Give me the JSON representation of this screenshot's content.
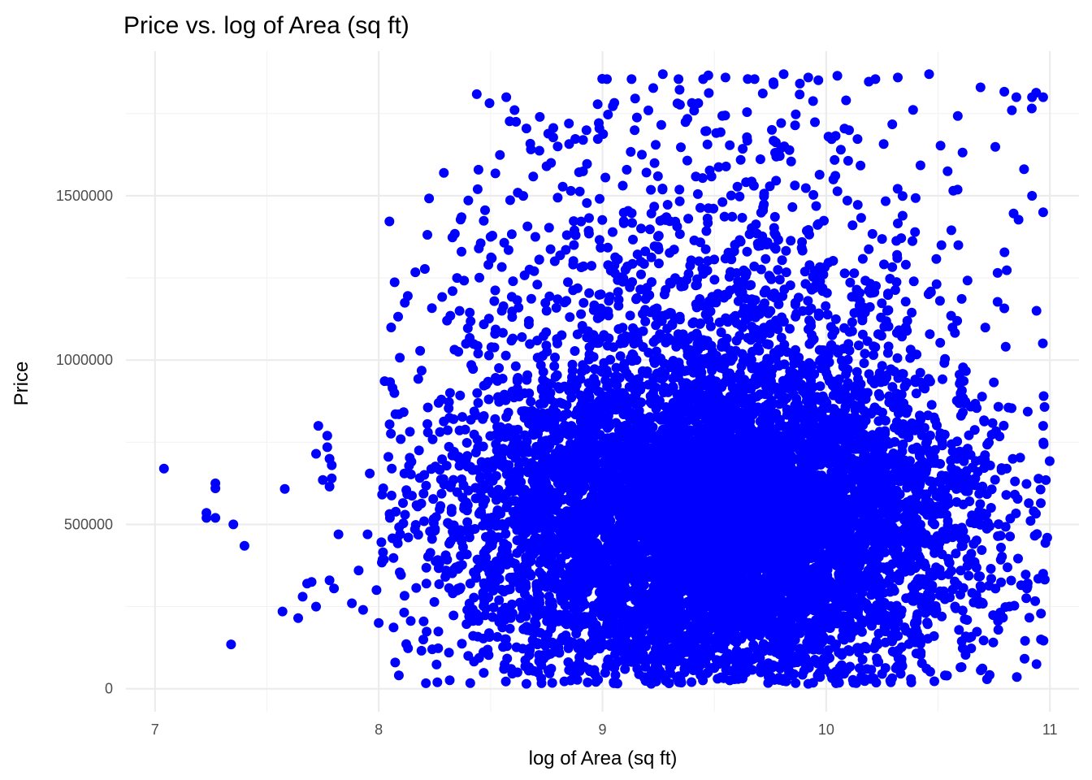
{
  "chart_data": {
    "type": "scatter",
    "title": "Price vs. log of Area (sq ft)",
    "xlabel": "log of Area (sq ft)",
    "ylabel": "Price",
    "xlim": [
      6.87,
      11.13
    ],
    "ylim": [
      -70000,
      1940000
    ],
    "x_ticks": [
      7,
      8,
      9,
      10,
      11
    ],
    "x_tick_labels": [
      "7",
      "8",
      "9",
      "10",
      "11"
    ],
    "y_ticks": [
      0,
      500000,
      1000000,
      1500000
    ],
    "y_tick_labels": [
      "0",
      "500000",
      "1000000",
      "1500000"
    ],
    "point_color": "#0000FF",
    "grid": true,
    "legend": "none",
    "series": [
      {
        "points": [
          [
            7.04,
            670000
          ],
          [
            7.23,
            535000
          ],
          [
            7.23,
            520000
          ],
          [
            7.27,
            625000
          ],
          [
            7.27,
            610000
          ],
          [
            7.27,
            520000
          ],
          [
            7.34,
            135000
          ],
          [
            7.35,
            500000
          ],
          [
            7.4,
            435000
          ],
          [
            7.58,
            608000
          ],
          [
            7.57,
            235000
          ],
          [
            7.64,
            215000
          ],
          [
            7.66,
            280000
          ],
          [
            7.68,
            320000
          ],
          [
            7.7,
            325000
          ],
          [
            7.72,
            250000
          ],
          [
            7.73,
            800000
          ],
          [
            7.72,
            715000
          ],
          [
            7.75,
            635000
          ],
          [
            7.77,
            770000
          ],
          [
            7.77,
            735000
          ],
          [
            7.78,
            700000
          ],
          [
            7.78,
            615000
          ],
          [
            7.79,
            680000
          ],
          [
            7.79,
            640000
          ],
          [
            7.78,
            330000
          ],
          [
            7.8,
            305000
          ],
          [
            7.82,
            470000
          ],
          [
            7.88,
            260000
          ],
          [
            7.91,
            360000
          ],
          [
            7.93,
            240000
          ],
          [
            7.96,
            655000
          ],
          [
            7.95,
            470000
          ],
          [
            7.99,
            300000
          ],
          [
            8.0,
            200000
          ],
          [
            8.02,
            610000
          ],
          [
            8.05,
            520000
          ],
          [
            8.07,
            900000
          ],
          [
            8.09,
            835000
          ],
          [
            8.13,
            1195000
          ],
          [
            8.18,
            725000
          ],
          [
            8.22,
            780000
          ],
          [
            8.28,
            880000
          ],
          [
            8.32,
            1135000
          ],
          [
            8.33,
            1210000
          ],
          [
            8.35,
            1250000
          ],
          [
            8.37,
            1435000
          ],
          [
            8.37,
            1330000
          ],
          [
            8.39,
            1050000
          ],
          [
            8.44,
            900000
          ],
          [
            8.49,
            1290000
          ],
          [
            8.5,
            1375000
          ],
          [
            8.52,
            1080000
          ],
          [
            8.57,
            1800000
          ],
          [
            8.58,
            1335000
          ],
          [
            8.6,
            1240000
          ],
          [
            8.64,
            1070000
          ],
          [
            8.66,
            1705000
          ],
          [
            8.72,
            1740000
          ],
          [
            8.7,
            1375000
          ],
          [
            8.77,
            1600000
          ],
          [
            8.8,
            1650000
          ],
          [
            8.85,
            1720000
          ],
          [
            8.88,
            1380000
          ],
          [
            8.75,
            1150000
          ],
          [
            8.55,
            1150000
          ],
          [
            8.47,
            830000
          ],
          [
            8.62,
            50000
          ],
          [
            8.66,
            15000
          ],
          [
            8.4,
            100000
          ],
          [
            8.56,
            60000
          ],
          [
            9.02,
            1855000
          ],
          [
            9.13,
            1855000
          ],
          [
            9.27,
            1870000
          ],
          [
            9.34,
            1855000
          ],
          [
            9.45,
            1855000
          ],
          [
            9.55,
            1860000
          ],
          [
            9.68,
            1855000
          ],
          [
            9.81,
            1870000
          ],
          [
            9.92,
            1860000
          ],
          [
            10.05,
            1865000
          ],
          [
            10.22,
            1855000
          ],
          [
            10.32,
            1860000
          ],
          [
            10.46,
            1870000
          ],
          [
            10.69,
            1830000
          ],
          [
            10.83,
            1760000
          ],
          [
            10.85,
            1800000
          ],
          [
            10.92,
            1800000
          ],
          [
            10.97,
            1800000
          ],
          [
            10.92,
            1500000
          ],
          [
            10.97,
            1450000
          ],
          [
            10.94,
            1150000
          ],
          [
            10.97,
            800000
          ],
          [
            10.97,
            350000
          ],
          [
            10.96,
            150000
          ],
          [
            10.94,
            75000
          ],
          [
            10.54,
            40000
          ],
          [
            10.6,
            65000
          ],
          [
            10.25,
            45000
          ],
          [
            9.92,
            15000
          ],
          [
            9.05,
            20000
          ]
        ],
        "dense_cluster": {
          "x_center": 9.5,
          "x_spread": 0.58,
          "y_center": 450000,
          "y_spread": 260000,
          "x_range": [
            8.0,
            11.0
          ],
          "y_range": [
            15000,
            1870000
          ],
          "approx_count": 9000
        }
      }
    ]
  }
}
